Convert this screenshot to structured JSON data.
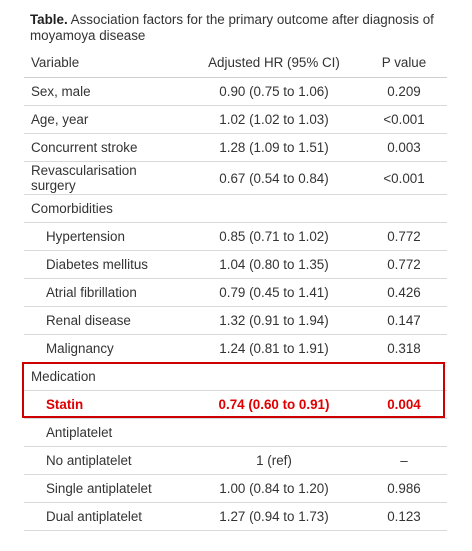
{
  "caption": {
    "label": "Table.",
    "text": " Association factors for the primary outcome after diagnosis of moyamoya disease"
  },
  "header": {
    "variable": "Variable",
    "hr": "Adjusted  HR  (95% CI)",
    "p": "P  value"
  },
  "rows": [
    {
      "variable": "Sex,  male",
      "hr": "0.90  (0.75  to  1.06)",
      "p": "0.209"
    },
    {
      "variable": "Age,  year",
      "hr": "1.02  (1.02  to  1.03)",
      "p": "<0.001"
    },
    {
      "variable": "Concurrent  stroke",
      "hr": "1.28  (1.09  to  1.51)",
      "p": "0.003"
    },
    {
      "variable": "Revascularisation surgery",
      "hr": "0.67  (0.54  to  0.84)",
      "p": "<0.001"
    },
    {
      "variable": "Comorbidities",
      "hr": "",
      "p": ""
    },
    {
      "variable": "Hypertension",
      "hr": "0.85  (0.71  to  1.02)",
      "p": "0.772"
    },
    {
      "variable": "Diabetes  mellitus",
      "hr": "1.04  (0.80  to  1.35)",
      "p": "0.772"
    },
    {
      "variable": "Atrial  fibrillation",
      "hr": "0.79  (0.45  to  1.41)",
      "p": "0.426"
    },
    {
      "variable": "Renal  disease",
      "hr": "1.32  (0.91  to  1.94)",
      "p": "0.147"
    },
    {
      "variable": "Malignancy",
      "hr": "1.24  (0.81  to  1.91)",
      "p": "0.318"
    },
    {
      "variable": "Medication",
      "hr": "",
      "p": ""
    },
    {
      "variable": "Statin",
      "hr": "0.74  (0.60  to  0.91)",
      "p": "0.004"
    },
    {
      "variable": "Antiplatelet",
      "hr": "",
      "p": ""
    },
    {
      "variable": "No  antiplatelet",
      "hr": "1  (ref)",
      "p": "–"
    },
    {
      "variable": "Single  antiplatelet",
      "hr": "1.00  (0.84  to  1.20)",
      "p": "0.986"
    },
    {
      "variable": "Dual  antiplatelet",
      "hr": "1.27  (0.94  to  1.73)",
      "p": "0.123"
    }
  ],
  "colors": {
    "highlight": "#cc0000",
    "highlight_text": "#e00000"
  }
}
